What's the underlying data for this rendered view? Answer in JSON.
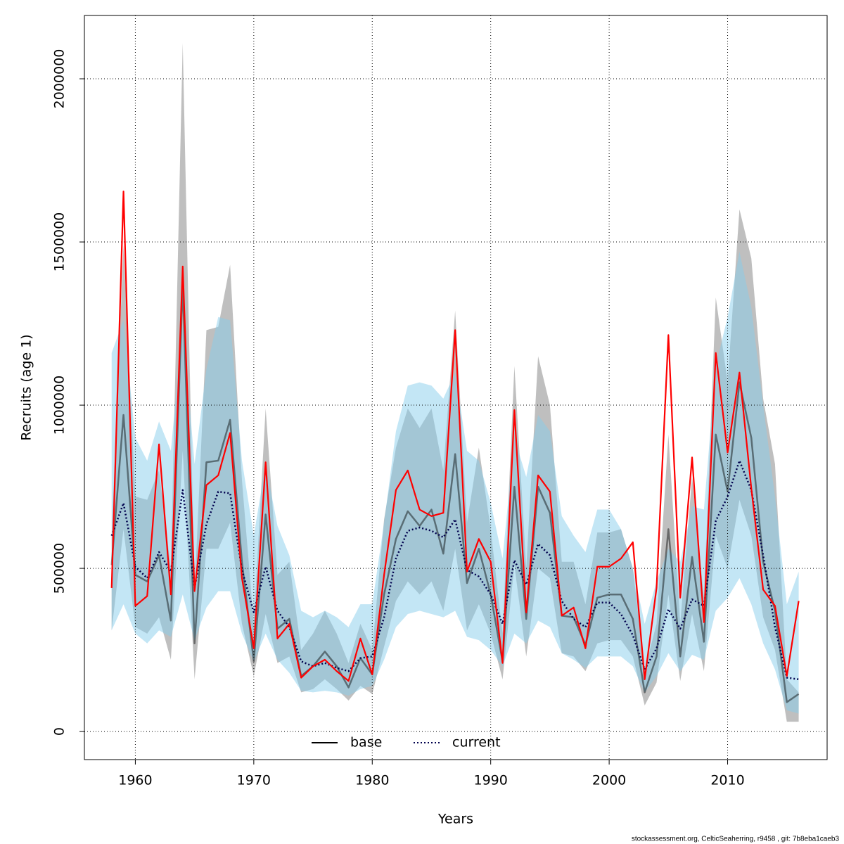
{
  "chart_data": {
    "type": "line",
    "x_label": "Years",
    "y_label": "Recruits (age 1)",
    "footer": "stockassessment.org, CelticSeaherring, r9458 , git: 7b8eba1caeb3",
    "x": [
      1958,
      1959,
      1960,
      1961,
      1962,
      1963,
      1964,
      1965,
      1966,
      1967,
      1968,
      1969,
      1970,
      1971,
      1972,
      1973,
      1974,
      1975,
      1976,
      1977,
      1978,
      1979,
      1980,
      1981,
      1982,
      1983,
      1984,
      1985,
      1986,
      1987,
      1988,
      1989,
      1990,
      1991,
      1992,
      1993,
      1994,
      1995,
      1996,
      1997,
      1998,
      1999,
      2000,
      2001,
      2002,
      2003,
      2004,
      2005,
      2006,
      2007,
      2008,
      2009,
      2010,
      2011,
      2012,
      2013,
      2014,
      2015,
      2016
    ],
    "xlim": [
      1955.7,
      2018.4
    ],
    "ylim": [
      -86000,
      2194000
    ],
    "xticks": [
      1960,
      1970,
      1980,
      1990,
      2000,
      2010
    ],
    "yticks": [
      0,
      500000,
      1000000,
      1500000,
      2000000
    ],
    "grid": true,
    "legend": "bottom",
    "series": [
      {
        "name": "base",
        "color": "#000000",
        "line_style": "solid",
        "band_color": "#808080",
        "values": [
          510000,
          970000,
          480000,
          460000,
          540000,
          340000,
          1370000,
          270000,
          825000,
          830000,
          955000,
          520000,
          215000,
          665000,
          315000,
          345000,
          170000,
          200000,
          245000,
          200000,
          135000,
          225000,
          175000,
          420000,
          590000,
          675000,
          630000,
          680000,
          545000,
          850000,
          455000,
          560000,
          420000,
          215000,
          750000,
          345000,
          750000,
          670000,
          355000,
          350000,
          265000,
          410000,
          420000,
          420000,
          345000,
          120000,
          230000,
          620000,
          230000,
          535000,
          275000,
          910000,
          735000,
          1070000,
          900000,
          520000,
          370000,
          90000,
          115000
        ],
        "lower": [
          310000,
          620000,
          320000,
          300000,
          350000,
          220000,
          860000,
          160000,
          560000,
          560000,
          640000,
          330000,
          170000,
          360000,
          210000,
          230000,
          120000,
          130000,
          160000,
          130000,
          95000,
          140000,
          115000,
          260000,
          400000,
          460000,
          420000,
          460000,
          370000,
          560000,
          310000,
          390000,
          300000,
          160000,
          510000,
          230000,
          500000,
          470000,
          240000,
          230000,
          185000,
          270000,
          280000,
          280000,
          230000,
          80000,
          150000,
          420000,
          155000,
          360000,
          185000,
          600000,
          500000,
          710000,
          600000,
          350000,
          250000,
          30000,
          30000
        ],
        "upper": [
          600000,
          1490000,
          720000,
          710000,
          800000,
          500000,
          2110000,
          430000,
          1230000,
          1240000,
          1430000,
          770000,
          330000,
          990000,
          480000,
          520000,
          250000,
          300000,
          370000,
          300000,
          210000,
          330000,
          250000,
          650000,
          870000,
          990000,
          930000,
          990000,
          800000,
          1290000,
          640000,
          870000,
          620000,
          300000,
          1120000,
          500000,
          1150000,
          1000000,
          520000,
          520000,
          390000,
          610000,
          610000,
          620000,
          500000,
          190000,
          330000,
          910000,
          330000,
          780000,
          410000,
          1330000,
          1070000,
          1600000,
          1450000,
          1020000,
          820000,
          160000,
          120000
        ]
      },
      {
        "name": "current",
        "color": "#00004d",
        "line_style": "dotted",
        "band_color": "#87ceeb",
        "values": [
          600000,
          700000,
          505000,
          470000,
          550000,
          490000,
          740000,
          440000,
          635000,
          735000,
          730000,
          495000,
          365000,
          505000,
          370000,
          320000,
          215000,
          200000,
          210000,
          195000,
          185000,
          225000,
          230000,
          350000,
          530000,
          615000,
          625000,
          615000,
          595000,
          650000,
          495000,
          475000,
          420000,
          330000,
          525000,
          450000,
          575000,
          540000,
          400000,
          345000,
          320000,
          395000,
          395000,
          360000,
          295000,
          190000,
          255000,
          375000,
          315000,
          405000,
          385000,
          645000,
          720000,
          830000,
          740000,
          540000,
          320000,
          165000,
          160000
        ],
        "lower": [
          310000,
          390000,
          300000,
          270000,
          310000,
          290000,
          420000,
          280000,
          380000,
          430000,
          430000,
          300000,
          215000,
          300000,
          220000,
          180000,
          125000,
          120000,
          125000,
          120000,
          110000,
          130000,
          140000,
          220000,
          320000,
          360000,
          370000,
          360000,
          350000,
          370000,
          290000,
          280000,
          250000,
          200000,
          300000,
          270000,
          340000,
          320000,
          240000,
          220000,
          195000,
          230000,
          230000,
          230000,
          200000,
          120000,
          170000,
          240000,
          185000,
          235000,
          220000,
          370000,
          410000,
          470000,
          390000,
          270000,
          190000,
          65000,
          55000
        ],
        "upper": [
          1160000,
          1260000,
          900000,
          830000,
          950000,
          860000,
          1250000,
          820000,
          1110000,
          1270000,
          1260000,
          830000,
          600000,
          820000,
          630000,
          540000,
          370000,
          350000,
          370000,
          350000,
          320000,
          390000,
          390000,
          640000,
          920000,
          1060000,
          1070000,
          1060000,
          1020000,
          1100000,
          860000,
          830000,
          700000,
          530000,
          900000,
          780000,
          970000,
          920000,
          660000,
          600000,
          550000,
          680000,
          680000,
          620000,
          500000,
          330000,
          460000,
          560000,
          520000,
          690000,
          680000,
          1120000,
          1270000,
          1470000,
          1300000,
          1000000,
          720000,
          390000,
          490000
        ]
      },
      {
        "color": "#ff0000",
        "line_style": "solid",
        "values": [
          440000,
          1655000,
          385000,
          415000,
          880000,
          420000,
          1425000,
          430000,
          755000,
          785000,
          915000,
          470000,
          255000,
          825000,
          285000,
          330000,
          165000,
          200000,
          220000,
          185000,
          155000,
          285000,
          175000,
          480000,
          740000,
          800000,
          680000,
          660000,
          670000,
          1230000,
          490000,
          590000,
          520000,
          210000,
          985000,
          365000,
          785000,
          735000,
          355000,
          380000,
          255000,
          505000,
          505000,
          530000,
          580000,
          160000,
          440000,
          1215000,
          410000,
          840000,
          335000,
          1160000,
          855000,
          1100000,
          745000,
          435000,
          385000,
          170000,
          400000
        ]
      }
    ]
  }
}
